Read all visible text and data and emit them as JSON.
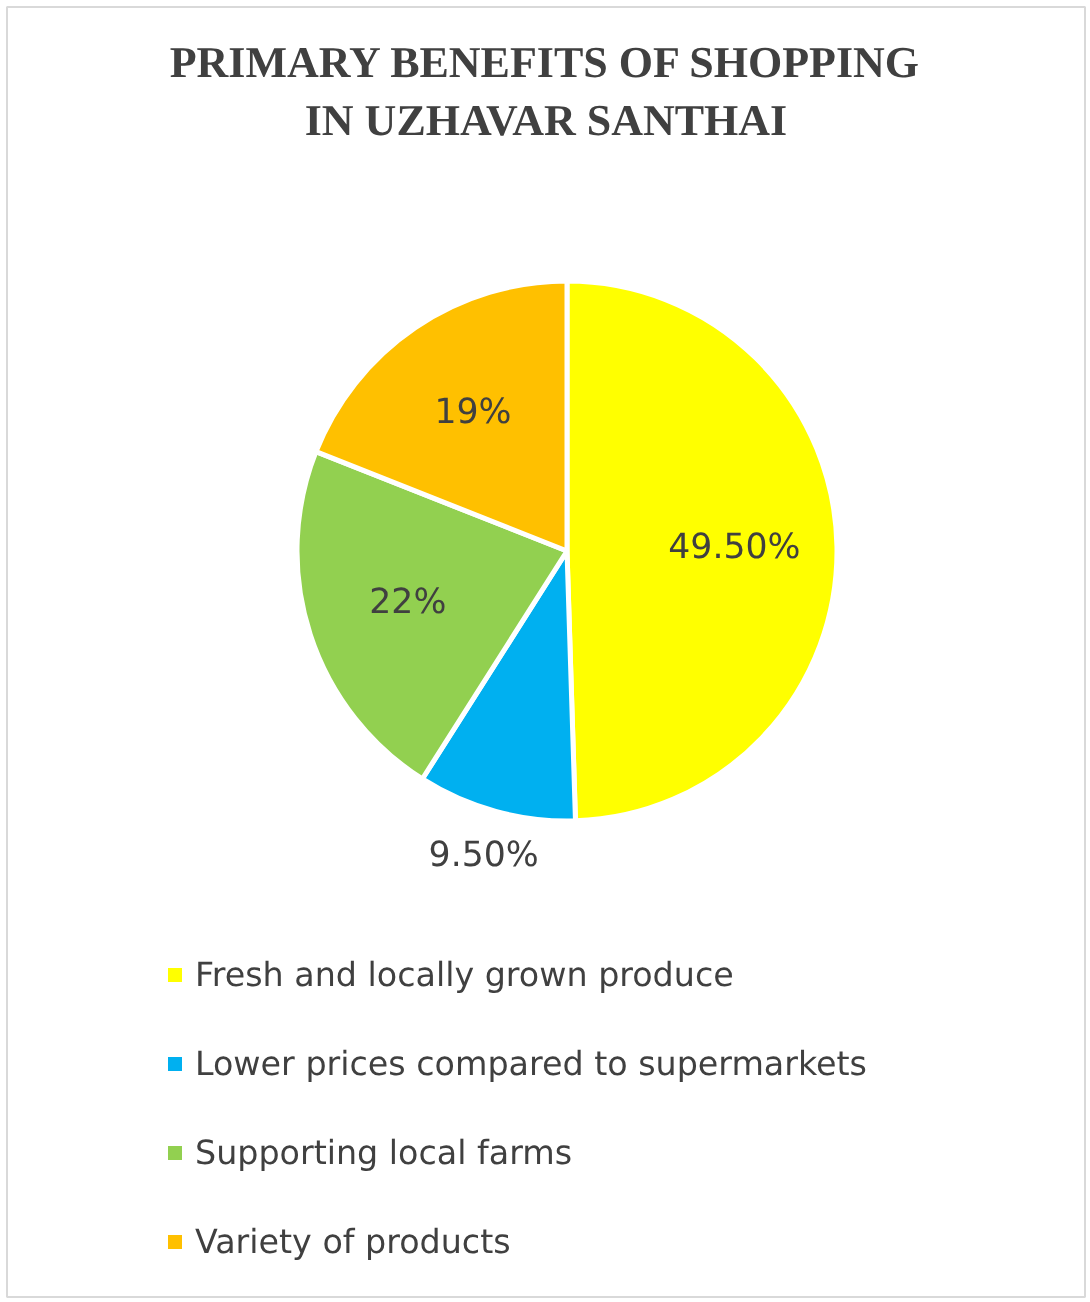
{
  "chart_data": {
    "type": "pie",
    "title": "PRIMARY BENEFITS OF SHOPPING\nIN UZHAVAR SANTHAI",
    "categories": [
      "Fresh and locally grown produce",
      "Lower prices compared to supermarkets",
      "Supporting local farms",
      "Variety of products"
    ],
    "values": [
      49.5,
      9.5,
      22,
      19
    ],
    "colors": [
      "#ffff00",
      "#00b0f0",
      "#92d050",
      "#ffc000"
    ],
    "value_labels": [
      "49.50%",
      "9.50%",
      "22%",
      "19%"
    ],
    "legend": "bottom"
  }
}
